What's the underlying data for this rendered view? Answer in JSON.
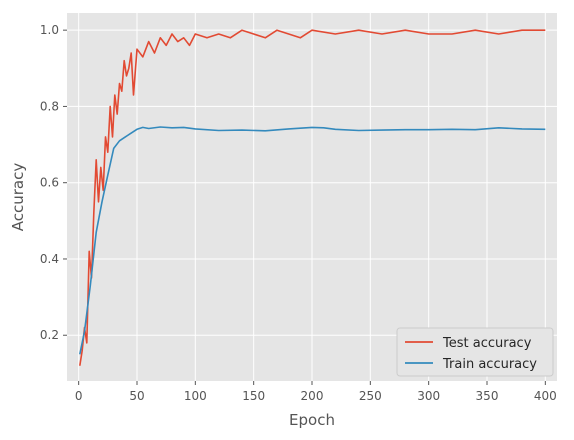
{
  "chart_data": {
    "type": "line",
    "xlabel": "Epoch",
    "ylabel": "Accuracy",
    "xlim": [
      -10,
      410
    ],
    "ylim": [
      0.08,
      1.045
    ],
    "xticks": [
      0,
      50,
      100,
      150,
      200,
      250,
      300,
      350,
      400
    ],
    "yticks": [
      0.2,
      0.4,
      0.6,
      0.8,
      1.0
    ],
    "xtick_labels": [
      "0",
      "50",
      "100",
      "150",
      "200",
      "250",
      "300",
      "350",
      "400"
    ],
    "ytick_labels": [
      "0.2",
      "0.4",
      "0.6",
      "0.8",
      "1.0"
    ],
    "grid": true,
    "legend_position": "bottom-right",
    "series": [
      {
        "name": "Test accuracy",
        "color": "#E24A33",
        "x": [
          1,
          3,
          5,
          7,
          9,
          11,
          13,
          15,
          17,
          19,
          21,
          23,
          25,
          27,
          29,
          31,
          33,
          35,
          37,
          39,
          41,
          43,
          45,
          47,
          50,
          55,
          60,
          65,
          70,
          75,
          80,
          85,
          90,
          95,
          100,
          110,
          120,
          130,
          140,
          150,
          160,
          170,
          180,
          190,
          200,
          220,
          240,
          260,
          280,
          300,
          320,
          340,
          360,
          380,
          400
        ],
        "y": [
          0.12,
          0.16,
          0.22,
          0.18,
          0.42,
          0.35,
          0.52,
          0.66,
          0.55,
          0.64,
          0.58,
          0.72,
          0.68,
          0.8,
          0.72,
          0.83,
          0.78,
          0.86,
          0.84,
          0.92,
          0.88,
          0.9,
          0.94,
          0.83,
          0.95,
          0.93,
          0.97,
          0.94,
          0.98,
          0.96,
          0.99,
          0.97,
          0.98,
          0.96,
          0.99,
          0.98,
          0.99,
          0.98,
          1.0,
          0.99,
          0.98,
          1.0,
          0.99,
          0.98,
          1.0,
          0.99,
          1.0,
          0.99,
          1.0,
          0.99,
          0.99,
          1.0,
          0.99,
          1.0,
          1.0
        ]
      },
      {
        "name": "Train accuracy",
        "color": "#348ABD",
        "x": [
          1,
          5,
          10,
          15,
          20,
          25,
          30,
          35,
          40,
          45,
          50,
          55,
          60,
          70,
          80,
          90,
          100,
          120,
          140,
          160,
          180,
          200,
          210,
          220,
          240,
          260,
          280,
          300,
          320,
          340,
          360,
          380,
          400
        ],
        "y": [
          0.15,
          0.21,
          0.33,
          0.47,
          0.55,
          0.62,
          0.69,
          0.71,
          0.72,
          0.73,
          0.74,
          0.745,
          0.742,
          0.746,
          0.744,
          0.745,
          0.741,
          0.737,
          0.738,
          0.736,
          0.741,
          0.745,
          0.744,
          0.74,
          0.737,
          0.738,
          0.739,
          0.739,
          0.74,
          0.739,
          0.744,
          0.741,
          0.74
        ]
      }
    ]
  }
}
